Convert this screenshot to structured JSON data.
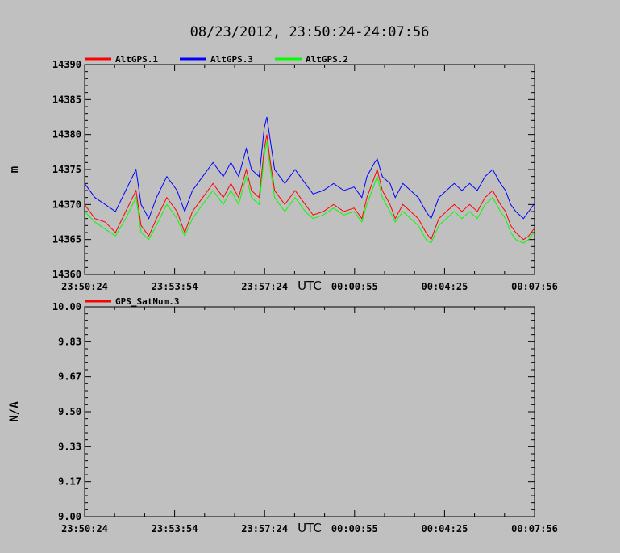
{
  "title": "08/23/2012, 23:50:24-24:07:56",
  "x_tick_labels": [
    "23:50:24",
    "23:53:54",
    "23:57:24",
    "00:00:55",
    "00:04:25",
    "00:07:56"
  ],
  "x_unit_label": "UTC",
  "chart_data": [
    {
      "type": "line",
      "panel": "top",
      "ylabel": "m",
      "ylim": [
        14360,
        14390
      ],
      "y_tick_labels": [
        "14390",
        "14385",
        "14380",
        "14375",
        "14370",
        "14365",
        "14360"
      ],
      "x_range_minutes": [
        0,
        17.53
      ],
      "legend_position": "top-left",
      "series": [
        {
          "name": "AltGPS.1",
          "color": "#ff0000",
          "points": [
            [
              0.0,
              14370
            ],
            [
              0.4,
              14368
            ],
            [
              0.8,
              14367.5
            ],
            [
              1.2,
              14366
            ],
            [
              1.6,
              14369
            ],
            [
              2.0,
              14372
            ],
            [
              2.2,
              14367
            ],
            [
              2.5,
              14365.5
            ],
            [
              2.8,
              14368
            ],
            [
              3.2,
              14371
            ],
            [
              3.6,
              14369
            ],
            [
              3.9,
              14366
            ],
            [
              4.2,
              14369
            ],
            [
              4.6,
              14371
            ],
            [
              5.0,
              14373
            ],
            [
              5.4,
              14371
            ],
            [
              5.7,
              14373
            ],
            [
              6.0,
              14371
            ],
            [
              6.3,
              14375
            ],
            [
              6.5,
              14372
            ],
            [
              6.8,
              14371
            ],
            [
              7.0,
              14378
            ],
            [
              7.1,
              14380
            ],
            [
              7.2,
              14377
            ],
            [
              7.4,
              14372
            ],
            [
              7.8,
              14370
            ],
            [
              8.2,
              14372
            ],
            [
              8.6,
              14370
            ],
            [
              8.9,
              14368.5
            ],
            [
              9.3,
              14369
            ],
            [
              9.7,
              14370
            ],
            [
              10.1,
              14369
            ],
            [
              10.5,
              14369.5
            ],
            [
              10.8,
              14368
            ],
            [
              11.0,
              14371
            ],
            [
              11.3,
              14374
            ],
            [
              11.4,
              14375
            ],
            [
              11.6,
              14372
            ],
            [
              11.9,
              14370
            ],
            [
              12.1,
              14368
            ],
            [
              12.4,
              14370
            ],
            [
              12.7,
              14369
            ],
            [
              13.0,
              14368
            ],
            [
              13.3,
              14366
            ],
            [
              13.5,
              14365
            ],
            [
              13.8,
              14368
            ],
            [
              14.1,
              14369
            ],
            [
              14.4,
              14370
            ],
            [
              14.7,
              14369
            ],
            [
              15.0,
              14370
            ],
            [
              15.3,
              14369
            ],
            [
              15.6,
              14371
            ],
            [
              15.9,
              14372
            ],
            [
              16.2,
              14370
            ],
            [
              16.4,
              14369
            ],
            [
              16.6,
              14367
            ],
            [
              16.8,
              14366
            ],
            [
              17.1,
              14365
            ],
            [
              17.3,
              14365.5
            ],
            [
              17.5,
              14366.5
            ]
          ]
        },
        {
          "name": "AltGPS.3",
          "color": "#0000ff",
          "points": [
            [
              0.0,
              14373
            ],
            [
              0.4,
              14371
            ],
            [
              0.8,
              14370
            ],
            [
              1.2,
              14369
            ],
            [
              1.6,
              14372
            ],
            [
              2.0,
              14375
            ],
            [
              2.2,
              14370
            ],
            [
              2.5,
              14368
            ],
            [
              2.8,
              14371
            ],
            [
              3.2,
              14374
            ],
            [
              3.6,
              14372
            ],
            [
              3.9,
              14369
            ],
            [
              4.2,
              14372
            ],
            [
              4.6,
              14374
            ],
            [
              5.0,
              14376
            ],
            [
              5.4,
              14374
            ],
            [
              5.7,
              14376
            ],
            [
              6.0,
              14374
            ],
            [
              6.3,
              14378
            ],
            [
              6.5,
              14375
            ],
            [
              6.8,
              14374
            ],
            [
              7.0,
              14381
            ],
            [
              7.1,
              14382.5
            ],
            [
              7.2,
              14380
            ],
            [
              7.4,
              14375
            ],
            [
              7.8,
              14373
            ],
            [
              8.2,
              14375
            ],
            [
              8.6,
              14373
            ],
            [
              8.9,
              14371.5
            ],
            [
              9.3,
              14372
            ],
            [
              9.7,
              14373
            ],
            [
              10.1,
              14372
            ],
            [
              10.5,
              14372.5
            ],
            [
              10.8,
              14371
            ],
            [
              11.0,
              14374
            ],
            [
              11.3,
              14376
            ],
            [
              11.4,
              14376.5
            ],
            [
              11.6,
              14374
            ],
            [
              11.9,
              14373
            ],
            [
              12.1,
              14371
            ],
            [
              12.4,
              14373
            ],
            [
              12.7,
              14372
            ],
            [
              13.0,
              14371
            ],
            [
              13.3,
              14369
            ],
            [
              13.5,
              14368
            ],
            [
              13.8,
              14371
            ],
            [
              14.1,
              14372
            ],
            [
              14.4,
              14373
            ],
            [
              14.7,
              14372
            ],
            [
              15.0,
              14373
            ],
            [
              15.3,
              14372
            ],
            [
              15.6,
              14374
            ],
            [
              15.9,
              14375
            ],
            [
              16.2,
              14373
            ],
            [
              16.4,
              14372
            ],
            [
              16.6,
              14370
            ],
            [
              16.8,
              14369
            ],
            [
              17.1,
              14368
            ],
            [
              17.3,
              14369
            ],
            [
              17.5,
              14370
            ]
          ]
        },
        {
          "name": "AltGPS.2",
          "color": "#00ff00",
          "points": [
            [
              0.0,
              14369
            ],
            [
              0.4,
              14367.5
            ],
            [
              0.8,
              14366.5
            ],
            [
              1.2,
              14365.5
            ],
            [
              1.6,
              14368
            ],
            [
              2.0,
              14371
            ],
            [
              2.2,
              14366
            ],
            [
              2.5,
              14365
            ],
            [
              2.8,
              14367
            ],
            [
              3.2,
              14370
            ],
            [
              3.6,
              14368
            ],
            [
              3.9,
              14365.5
            ],
            [
              4.2,
              14368
            ],
            [
              4.6,
              14370
            ],
            [
              5.0,
              14372
            ],
            [
              5.4,
              14370
            ],
            [
              5.7,
              14372
            ],
            [
              6.0,
              14370
            ],
            [
              6.3,
              14374
            ],
            [
              6.5,
              14371
            ],
            [
              6.8,
              14370
            ],
            [
              7.0,
              14377
            ],
            [
              7.1,
              14379
            ],
            [
              7.2,
              14376
            ],
            [
              7.4,
              14371
            ],
            [
              7.8,
              14369
            ],
            [
              8.2,
              14371
            ],
            [
              8.6,
              14369
            ],
            [
              8.9,
              14368
            ],
            [
              9.3,
              14368.5
            ],
            [
              9.7,
              14369.5
            ],
            [
              10.1,
              14368.5
            ],
            [
              10.5,
              14369
            ],
            [
              10.8,
              14367.5
            ],
            [
              11.0,
              14370
            ],
            [
              11.3,
              14373
            ],
            [
              11.4,
              14374
            ],
            [
              11.6,
              14371
            ],
            [
              11.9,
              14369
            ],
            [
              12.1,
              14367.5
            ],
            [
              12.4,
              14369
            ],
            [
              12.7,
              14368
            ],
            [
              13.0,
              14367
            ],
            [
              13.3,
              14365
            ],
            [
              13.5,
              14364.5
            ],
            [
              13.8,
              14367
            ],
            [
              14.1,
              14368
            ],
            [
              14.4,
              14369
            ],
            [
              14.7,
              14368
            ],
            [
              15.0,
              14369
            ],
            [
              15.3,
              14368
            ],
            [
              15.6,
              14370
            ],
            [
              15.9,
              14371
            ],
            [
              16.2,
              14369
            ],
            [
              16.4,
              14368
            ],
            [
              16.6,
              14366
            ],
            [
              16.8,
              14365
            ],
            [
              17.1,
              14364.5
            ],
            [
              17.3,
              14365
            ],
            [
              17.5,
              14366
            ]
          ]
        }
      ]
    },
    {
      "type": "line",
      "panel": "bottom",
      "ylabel": "N/A",
      "ylim": [
        9.0,
        10.0
      ],
      "y_tick_labels": [
        "10.00",
        "9.83",
        "9.67",
        "9.50",
        "9.33",
        "9.17",
        "9.00"
      ],
      "x_range_minutes": [
        0,
        17.53
      ],
      "legend_position": "top-left",
      "series": [
        {
          "name": "GPS_SatNum.3",
          "color": "#ff0000",
          "points": []
        }
      ]
    }
  ]
}
